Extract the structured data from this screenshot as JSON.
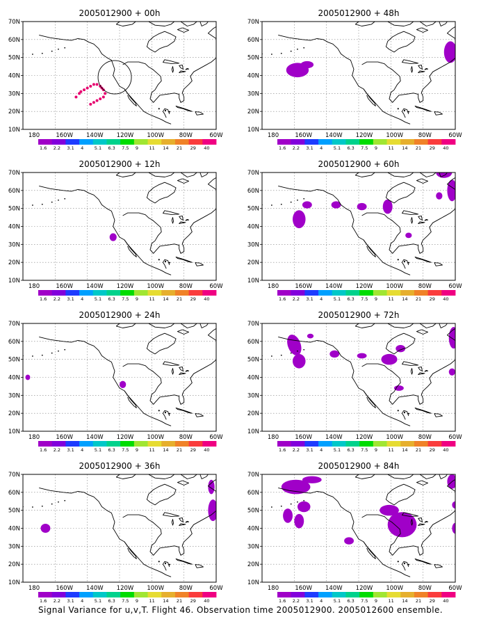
{
  "figure": {
    "caption": "Signal Variance for u,v,T. Flight 46. Observation time 2005012900. 2005012600 ensemble.",
    "lat_ticks": [
      "10N",
      "20N",
      "30N",
      "40N",
      "50N",
      "60N",
      "70N"
    ],
    "lon_ticks": [
      "180",
      "160W",
      "140W",
      "120W",
      "100W",
      "80W",
      "60W"
    ],
    "colorbar_labels": [
      "1.6",
      "2.2",
      "3.1",
      "4",
      "5.1",
      "6.3",
      "7.5",
      "9",
      "11",
      "14",
      "21",
      "29",
      "40"
    ],
    "colorbar_colors": [
      "#a000c8",
      "#8200dc",
      "#1e3cff",
      "#00a0ff",
      "#00c8c8",
      "#00d28c",
      "#00dc00",
      "#a0e632",
      "#e6dc32",
      "#e6af2d",
      "#f08228",
      "#fa3c3c",
      "#f00082"
    ],
    "panels": [
      {
        "title": "2005012900 + 00h"
      },
      {
        "title": "2005012900 + 48h"
      },
      {
        "title": "2005012900 + 12h"
      },
      {
        "title": "2005012900 + 60h"
      },
      {
        "title": "2005012900 + 24h"
      },
      {
        "title": "2005012900 + 72h"
      },
      {
        "title": "2005012900 + 36h"
      },
      {
        "title": "2005012900 + 84h"
      }
    ]
  }
}
